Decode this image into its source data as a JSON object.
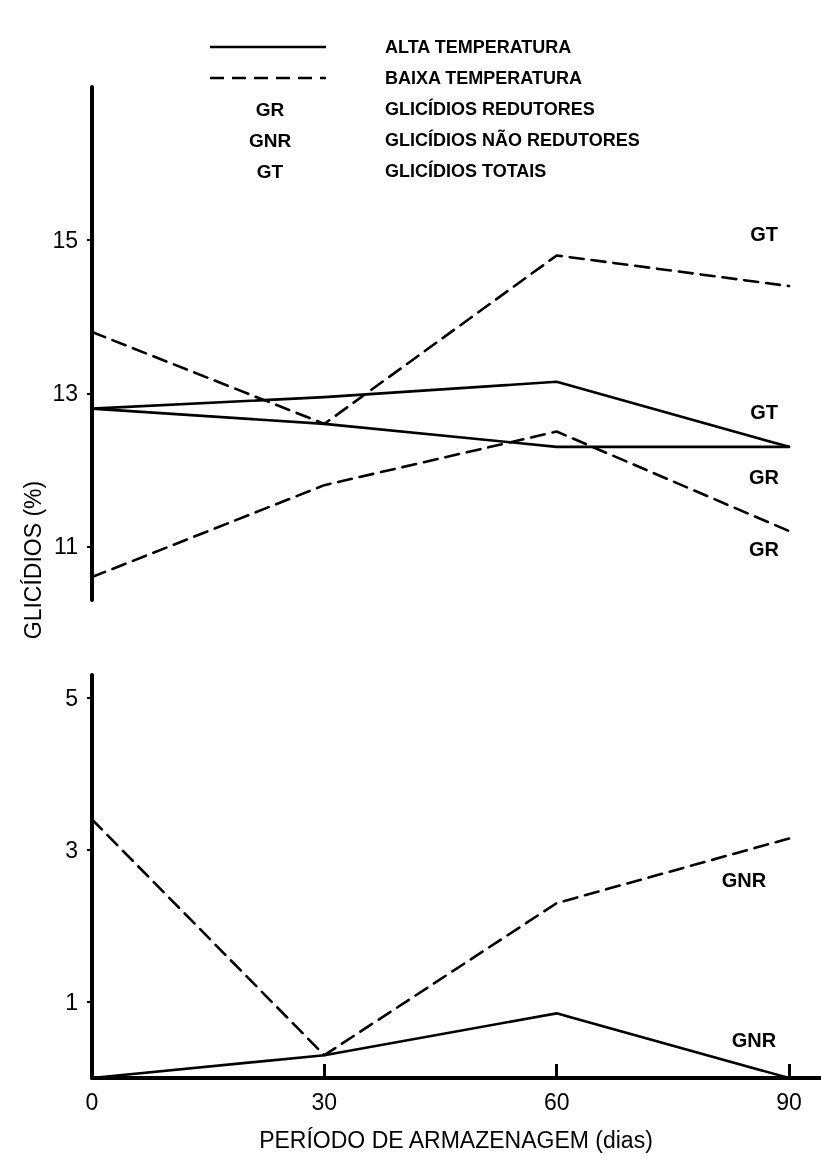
{
  "chart_data": [
    {
      "type": "line",
      "ylabel": "GLICÍDIOS (%)",
      "x": [
        0,
        30,
        60,
        90
      ],
      "ylim": [
        10.3,
        17
      ],
      "yticks": [
        11,
        13,
        15
      ],
      "tick_labels": "y",
      "grid": false,
      "legend": false,
      "marker": "none",
      "series": [
        {
          "name": "GT",
          "color": "#000000",
          "line_style": "dashed",
          "values": [
            13.8,
            12.6,
            14.8,
            14.4
          ]
        },
        {
          "name": "GT",
          "color": "#000000",
          "line_style": "solid",
          "values": [
            12.8,
            12.95,
            13.15,
            12.3
          ]
        },
        {
          "name": "GR",
          "color": "#000000",
          "line_style": "solid",
          "values": [
            12.8,
            12.6,
            12.3,
            12.3
          ]
        },
        {
          "name": "GR",
          "color": "#000000",
          "line_style": "dashed",
          "values": [
            10.6,
            11.8,
            12.5,
            11.2
          ]
        }
      ],
      "annotations": [
        "ALTA TEMPERATURA",
        "BAIXA TEMPERATURA",
        "GR",
        "GLICÍDIOS REDUTORES",
        "GNR",
        "GLICÍDIOS NÃO REDUTORES",
        "GT",
        "GLICÍDIOS TOTAIS"
      ]
    },
    {
      "type": "line",
      "xlabel": "PERÍODO DE ARMAZENAGEM (dias)",
      "x": [
        0,
        30,
        60,
        90
      ],
      "xlim": [
        0,
        94
      ],
      "xticks": [
        0,
        30,
        60,
        90
      ],
      "ylim": [
        0,
        5.3
      ],
      "yticks": [
        1,
        3,
        5
      ],
      "grid": false,
      "legend": false,
      "marker": "none",
      "series": [
        {
          "name": "GNR",
          "color": "#000000",
          "line_style": "dashed",
          "values": [
            3.4,
            0.3,
            2.3,
            3.15
          ]
        },
        {
          "name": "GNR",
          "color": "#000000",
          "line_style": "solid",
          "values": [
            0,
            0.3,
            0.85,
            0
          ]
        }
      ]
    }
  ]
}
